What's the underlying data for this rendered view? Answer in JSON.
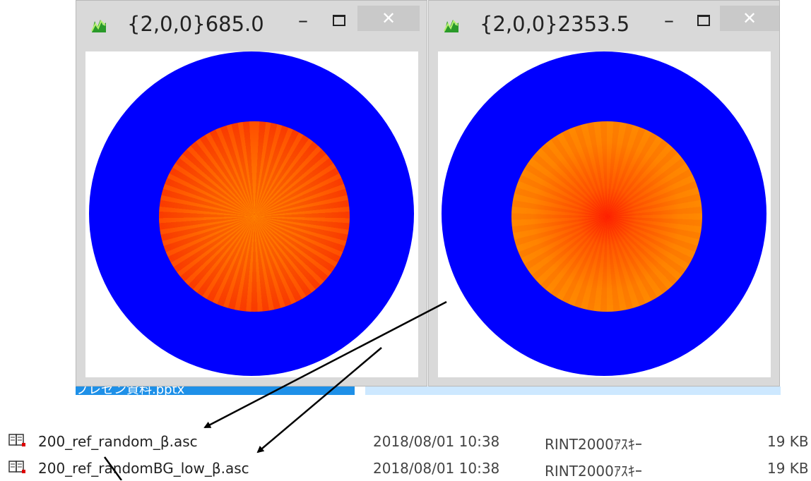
{
  "windows": [
    {
      "title": "{2,0,0}685.0",
      "icon": "green-chart-icon",
      "controls": {
        "minimize": "–",
        "close": "✕"
      },
      "colors": {
        "ring": "#0000ff",
        "core": "#ff4a00",
        "background": "#ffffff"
      }
    },
    {
      "title": "{2,0,0}2353.5",
      "icon": "green-chart-icon",
      "controls": {
        "minimize": "–",
        "close": "✕"
      },
      "colors": {
        "ring": "#0000ff",
        "core": "#ff7a00",
        "background": "#ffffff"
      }
    }
  ],
  "explorer": {
    "selected_partial_text": "プレゼン資料.pptx",
    "files": [
      {
        "name": "200_ref_random_β.asc",
        "date": "2018/08/01 10:38",
        "type": "RINT2000ｱｽｷｰ",
        "size": "19 KB",
        "icon": "asc-file-icon"
      },
      {
        "name": "200_ref_randomBG_low_β.asc",
        "date": "2018/08/01 10:38",
        "type": "RINT2000ｱｽｷｰ",
        "size": "19 KB",
        "icon": "asc-file-icon"
      }
    ]
  }
}
